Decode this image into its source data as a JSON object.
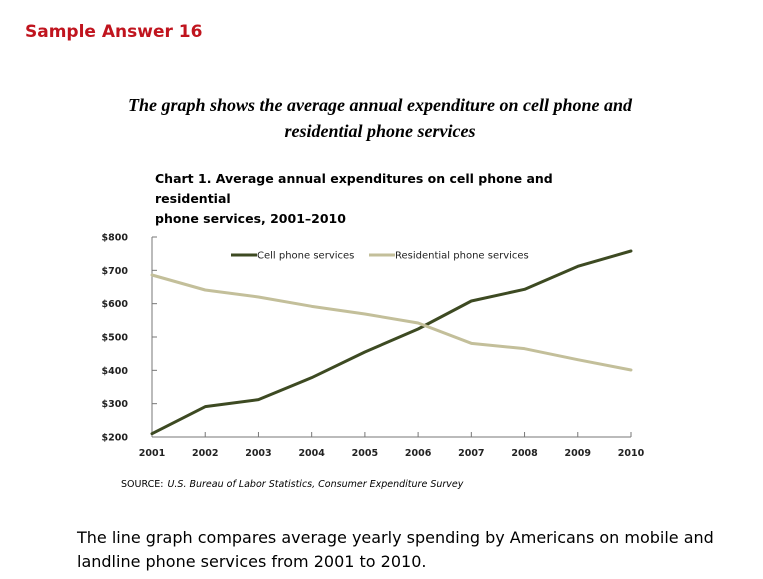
{
  "header": {
    "title": "Sample Answer 16"
  },
  "prompt": {
    "line1": "The graph shows the average annual expenditure on cell phone and",
    "line2": "residential phone services"
  },
  "chart_data": {
    "type": "line",
    "title_line1": "Chart 1. Average annual expenditures on cell phone and residential",
    "title_line2": "phone services, 2001–2010",
    "x": [
      "2001",
      "2002",
      "2003",
      "2004",
      "2005",
      "2006",
      "2007",
      "2008",
      "2009",
      "2010"
    ],
    "y_ticks": [
      "$200",
      "$300",
      "$400",
      "$500",
      "$600",
      "$700",
      "$800"
    ],
    "y_tick_values": [
      200,
      300,
      400,
      500,
      600,
      700,
      800
    ],
    "ylim": [
      200,
      800
    ],
    "series": [
      {
        "name": "Cell phone services",
        "color": "#3d4a22",
        "values": [
          210,
          291,
          312,
          378,
          455,
          524,
          608,
          643,
          712,
          758
        ]
      },
      {
        "name": "Residential phone services",
        "color": "#c3bf9a",
        "values": [
          686,
          641,
          620,
          592,
          569,
          542,
          481,
          465,
          432,
          401
        ]
      }
    ],
    "legend_position": "top",
    "source_label": "SOURCE:",
    "source_text": "U.S. Bureau of Labor Statistics, Consumer Expenditure Survey"
  },
  "answer": {
    "line1": "The line graph compares average yearly spending by Americans on mobile and",
    "line2": "landline phone services from 2001 to 2010."
  }
}
